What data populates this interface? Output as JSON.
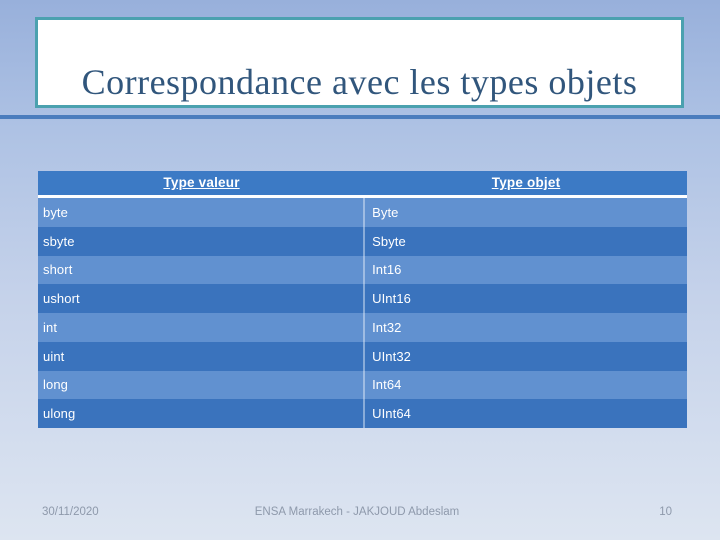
{
  "slide": {
    "title": "Correspondance avec les types objets",
    "table": {
      "headers": [
        "Type valeur",
        "Type objet"
      ],
      "rows": [
        {
          "value_type": "byte",
          "object_type": "Byte"
        },
        {
          "value_type": "sbyte",
          "object_type": "Sbyte"
        },
        {
          "value_type": "short",
          "object_type": "Int16"
        },
        {
          "value_type": "ushort",
          "object_type": "UInt16"
        },
        {
          "value_type": "int",
          "object_type": "Int32"
        },
        {
          "value_type": "uint",
          "object_type": "UInt32"
        },
        {
          "value_type": "long",
          "object_type": "Int64"
        },
        {
          "value_type": "ulong",
          "object_type": "UInt64"
        }
      ]
    },
    "footer": {
      "date": "30/11/2020",
      "credit": "ENSA Marrakech - JAKJOUD Abdeslam",
      "page_number": "10"
    },
    "colors": {
      "background_top": "#98b0db",
      "background_bottom": "#dde5f1",
      "title_text": "#31567c",
      "title_box_border": "#4ba1af",
      "divider_line": "#4b7dbd",
      "table_header_bg": "#3c7ac5",
      "row_light": "#6191d0",
      "row_dark": "#3a73bd",
      "footer_text": "#8e99ab"
    }
  }
}
